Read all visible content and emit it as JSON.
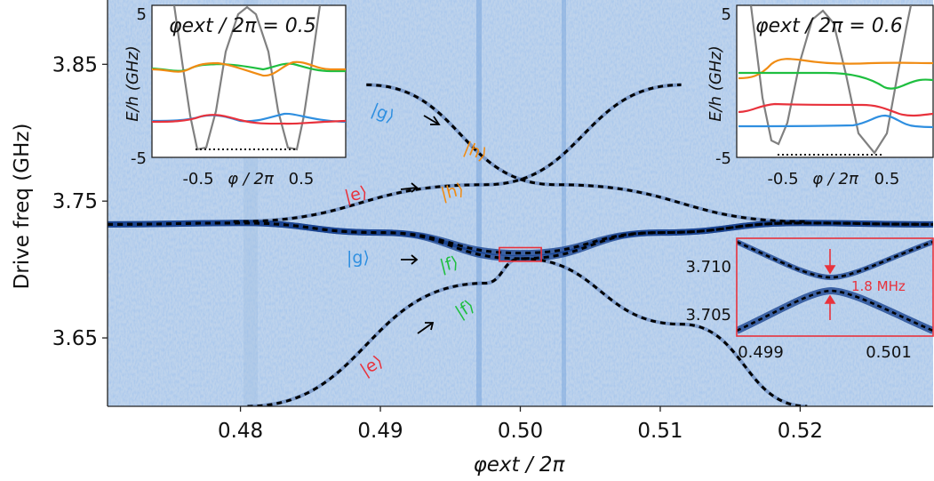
{
  "chart_data": [
    {
      "type": "heatmap",
      "xlabel": "φext / 2π",
      "ylabel": "Drive freq (GHz)",
      "xlim": [
        0.4705,
        0.5295
      ],
      "ylim": [
        3.6,
        3.897
      ],
      "xticks": [
        "0.48",
        "0.49",
        "0.50",
        "0.51",
        "0.52"
      ],
      "yticks": [
        "3.65",
        "3.75",
        "3.85"
      ],
      "series": [
        {
          "values": [
            [
              0.4705,
              3.733
            ],
            [
              0.48,
              3.734
            ],
            [
              0.49,
              3.727
            ],
            [
              0.5,
              3.712
            ],
            [
              0.51,
              3.727
            ],
            [
              0.52,
              3.734
            ],
            [
              0.5295,
              3.733
            ]
          ]
        },
        {
          "values": [
            [
              0.4705,
              3.733
            ],
            [
              0.48,
              3.734
            ],
            [
              0.49,
              3.727
            ],
            [
              0.5,
              3.708
            ],
            [
              0.51,
              3.727
            ],
            [
              0.52,
              3.734
            ],
            [
              0.5295,
              3.733
            ]
          ]
        },
        {
          "values": [
            [
              0.489,
              3.835
            ],
            [
              0.5025,
              3.762
            ],
            [
              0.5205,
              3.735
            ]
          ]
        },
        {
          "values": [
            [
              0.4795,
              3.735
            ],
            [
              0.4975,
              3.762
            ],
            [
              0.5115,
              3.835
            ]
          ]
        },
        {
          "values": [
            [
              0.4805,
              3.6
            ],
            [
              0.4975,
              3.69
            ],
            [
              0.5,
              3.708
            ],
            [
              0.5115,
              3.66
            ],
            [
              0.5205,
              3.6
            ]
          ]
        }
      ],
      "state_labels": {
        "g_upper": "|g⟩",
        "h_diag": "|h⟩",
        "e_mid": "|e⟩",
        "h_mid": "|h⟩",
        "g_lower": "|g⟩",
        "f_lower": "|f⟩",
        "f_diag": "|f⟩",
        "e_diag": "|e⟩"
      },
      "highlight_box": {
        "x": [
          0.4985,
          0.5015
        ],
        "y": [
          3.706,
          3.716
        ],
        "color": "#e8323c"
      }
    },
    {
      "type": "line",
      "title": "φext / 2π = 0.5",
      "xlabel": "φ / 2π",
      "ylabel": "E/h (GHz)",
      "xticks": [
        "-0.5",
        "0.5"
      ],
      "yticks": [
        "5",
        "-5"
      ],
      "ylim": [
        -5,
        5
      ]
    },
    {
      "type": "line",
      "title": "φext / 2π = 0.6",
      "xlabel": "φ / 2π",
      "ylabel": "E/h (GHz)",
      "xticks": [
        "-0.5",
        "0.5"
      ],
      "yticks": [
        "5",
        "-5"
      ],
      "ylim": [
        -5,
        5
      ]
    },
    {
      "type": "heatmap",
      "xticks": [
        "0.499",
        "0.501"
      ],
      "yticks": [
        "3.710",
        "3.705"
      ],
      "xlim": [
        0.4985,
        0.5015
      ],
      "ylim": [
        3.7035,
        3.7135
      ],
      "annotation": "1.8 MHz"
    }
  ],
  "colors": {
    "background": "#ffffff",
    "heatmap_base": "#bed3ec",
    "resonance": "#123c8c",
    "g": "#2f8fe0",
    "e": "#e8323c",
    "f": "#1fbf40",
    "h": "#f08c14",
    "potential": "#808080"
  }
}
